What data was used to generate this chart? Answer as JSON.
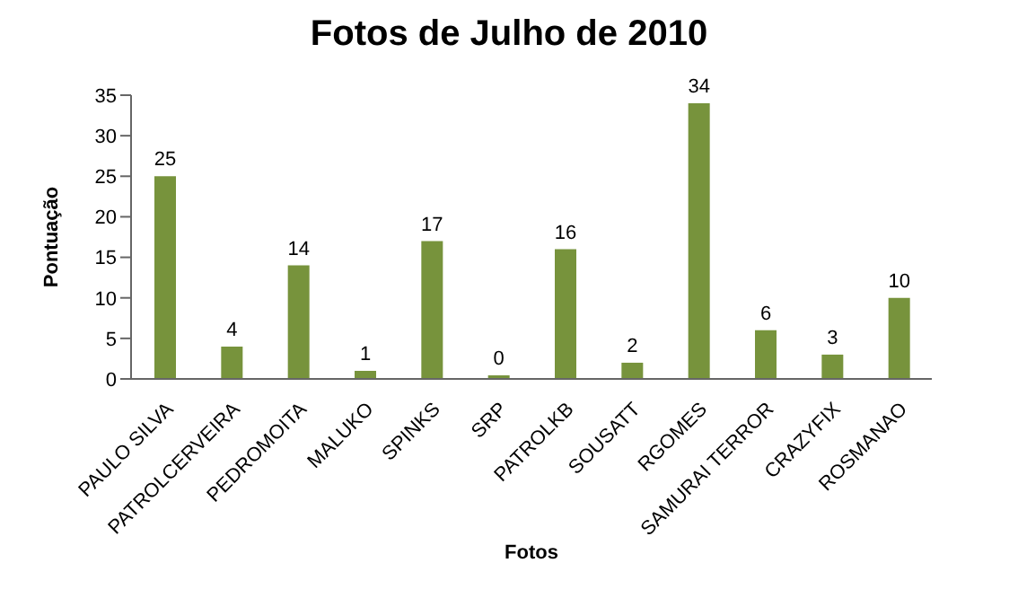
{
  "chart_data": {
    "type": "bar",
    "title": "Fotos de Julho de 2010",
    "xlabel": "Fotos",
    "ylabel": "Pontuação",
    "categories": [
      "PAULO SILVA",
      "PATROLCERVEIRA",
      "PEDROMOITA",
      "MALUKO",
      "SPINKS",
      "SRP",
      "PATROLKB",
      "SOUSATT",
      "RGOMES",
      "SAMURAI TERROR",
      "CRAZYFIX",
      "ROSMANAO"
    ],
    "values": [
      25,
      4,
      14,
      1,
      17,
      0,
      16,
      2,
      34,
      6,
      3,
      10
    ],
    "color": "#77933c",
    "ylim": [
      0,
      35
    ],
    "yticks": [
      0,
      5,
      10,
      15,
      20,
      25,
      30,
      35
    ],
    "grid": false,
    "data_labels": true
  }
}
